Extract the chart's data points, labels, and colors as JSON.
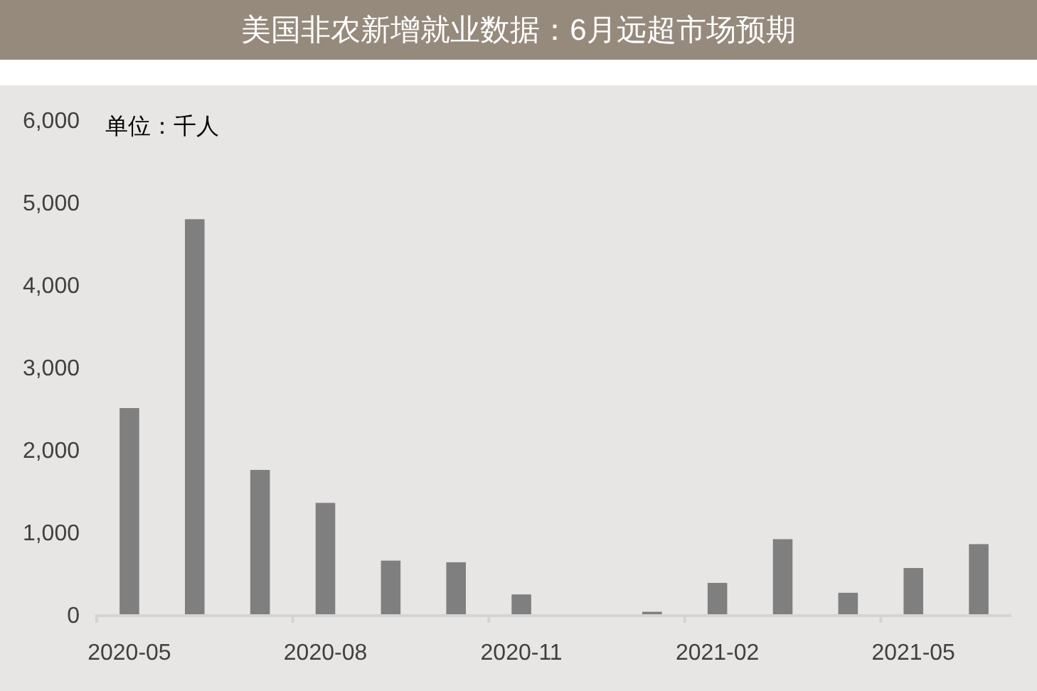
{
  "chart_data": {
    "type": "bar",
    "title": "美国非农新增就业数据：6月远超市场预期",
    "annotations": [
      "单位：千人"
    ],
    "categories": [
      "2020-05",
      null,
      null,
      "2020-08",
      null,
      null,
      "2020-11",
      null,
      null,
      "2021-02",
      null,
      null,
      "2021-05",
      null
    ],
    "values": [
      2500,
      4790,
      1750,
      1350,
      650,
      630,
      240,
      null,
      30,
      380,
      910,
      260,
      560,
      850
    ],
    "color": "#7f7f7f",
    "ylim": [
      0,
      6000
    ],
    "yticks": [
      0,
      {
        "value": 1000,
        "label": "1,000"
      },
      {
        "value": 2000,
        "label": "2,000"
      },
      {
        "value": 3000,
        "label": "3,000"
      },
      {
        "value": 4000,
        "label": "4,000"
      },
      {
        "value": 5000,
        "label": "5,000"
      },
      {
        "value": 6000,
        "label": "6,000"
      }
    ],
    "grid": false
  }
}
